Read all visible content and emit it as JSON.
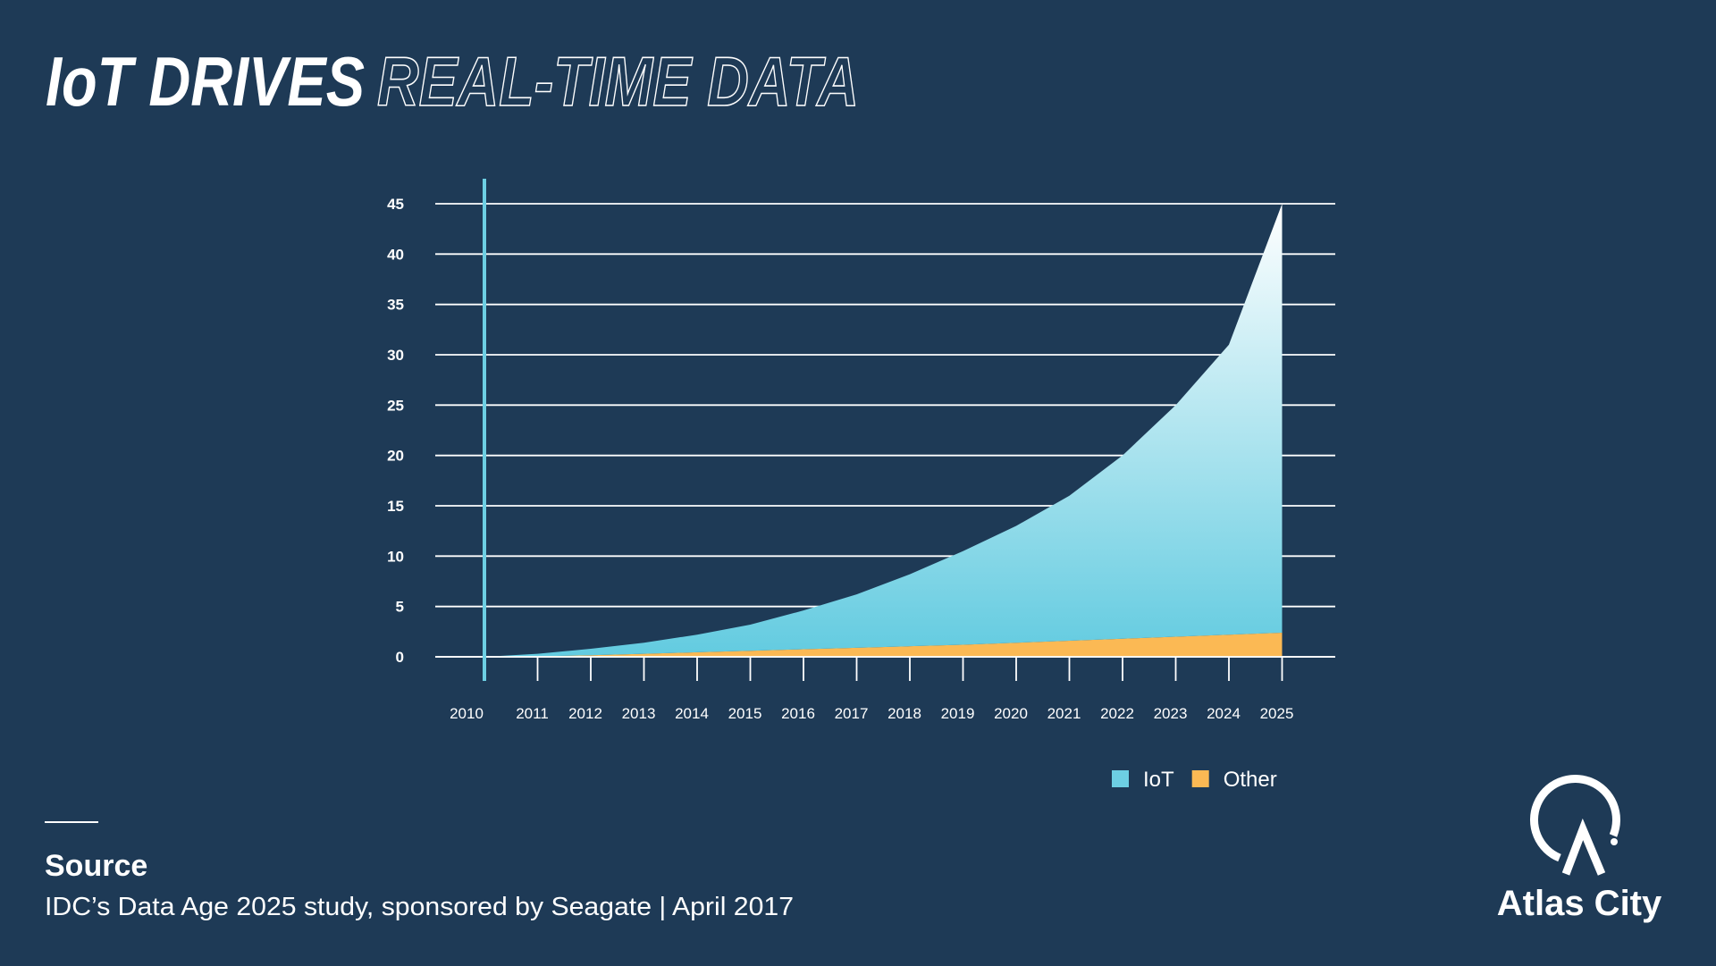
{
  "chart_data": {
    "type": "area",
    "title": {
      "solid": "IoT DRIVES",
      "outline": "REAL-TIME DATA"
    },
    "categories": [
      "2010",
      "2011",
      "2012",
      "2013",
      "2014",
      "2015",
      "2016",
      "2017",
      "2018",
      "2019",
      "2020",
      "2021",
      "2022",
      "2023",
      "2024",
      "2025"
    ],
    "series": [
      {
        "name": "IoT",
        "color": "#6dcfe3",
        "values": [
          0,
          0.25,
          0.65,
          1.1,
          1.75,
          2.6,
          3.85,
          5.3,
          7.15,
          9.3,
          11.6,
          14.4,
          18.2,
          23,
          28.8,
          42.6
        ]
      },
      {
        "name": "Other",
        "color": "#fbb954",
        "values": [
          0,
          0.05,
          0.15,
          0.3,
          0.45,
          0.6,
          0.75,
          0.9,
          1.05,
          1.2,
          1.4,
          1.6,
          1.8,
          2.0,
          2.2,
          2.4
        ]
      }
    ],
    "stacked": true,
    "ylim": [
      0,
      45
    ],
    "yticks": [
      0,
      5,
      10,
      15,
      20,
      25,
      30,
      35,
      40,
      45
    ],
    "grid": true,
    "legend": "bottom-right"
  },
  "source": {
    "label": "Source",
    "text": "IDC’s Data Age 2025 study, sponsored by Seagate | April 2017"
  },
  "logo": {
    "text": "Atlas City"
  }
}
